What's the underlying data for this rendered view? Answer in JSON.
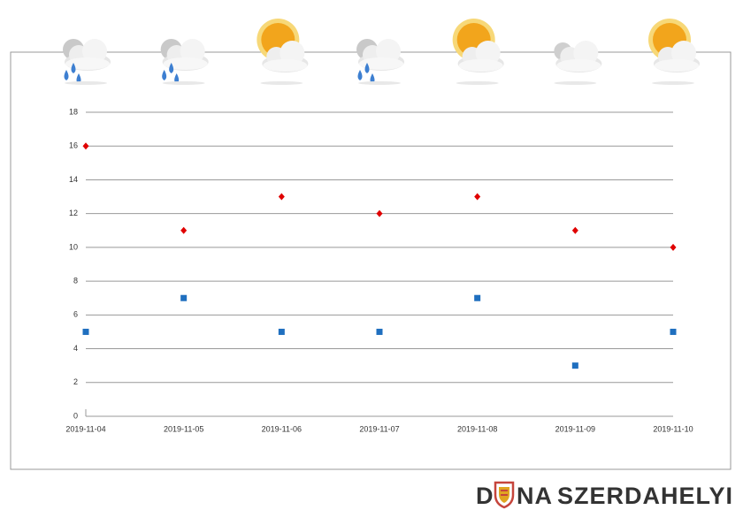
{
  "chart_data": {
    "type": "scatter",
    "categories": [
      "2019-11-04",
      "2019-11-05",
      "2019-11-06",
      "2019-11-07",
      "2019-11-08",
      "2019-11-09",
      "2019-11-10"
    ],
    "series": [
      {
        "color": "#e00000",
        "marker": "diamond",
        "values": [
          16,
          11,
          13,
          12,
          13,
          11,
          10
        ]
      },
      {
        "color": "#1f6fbf",
        "marker": "square",
        "values": [
          5,
          7,
          5,
          5,
          7,
          3,
          5
        ]
      }
    ],
    "ylim": [
      0,
      18
    ],
    "yticks": [
      0,
      2,
      4,
      6,
      8,
      10,
      12,
      14,
      16,
      18
    ],
    "grid": true
  },
  "logo": {
    "parts": [
      "D",
      "NA",
      "SZERDAHELYI"
    ]
  }
}
